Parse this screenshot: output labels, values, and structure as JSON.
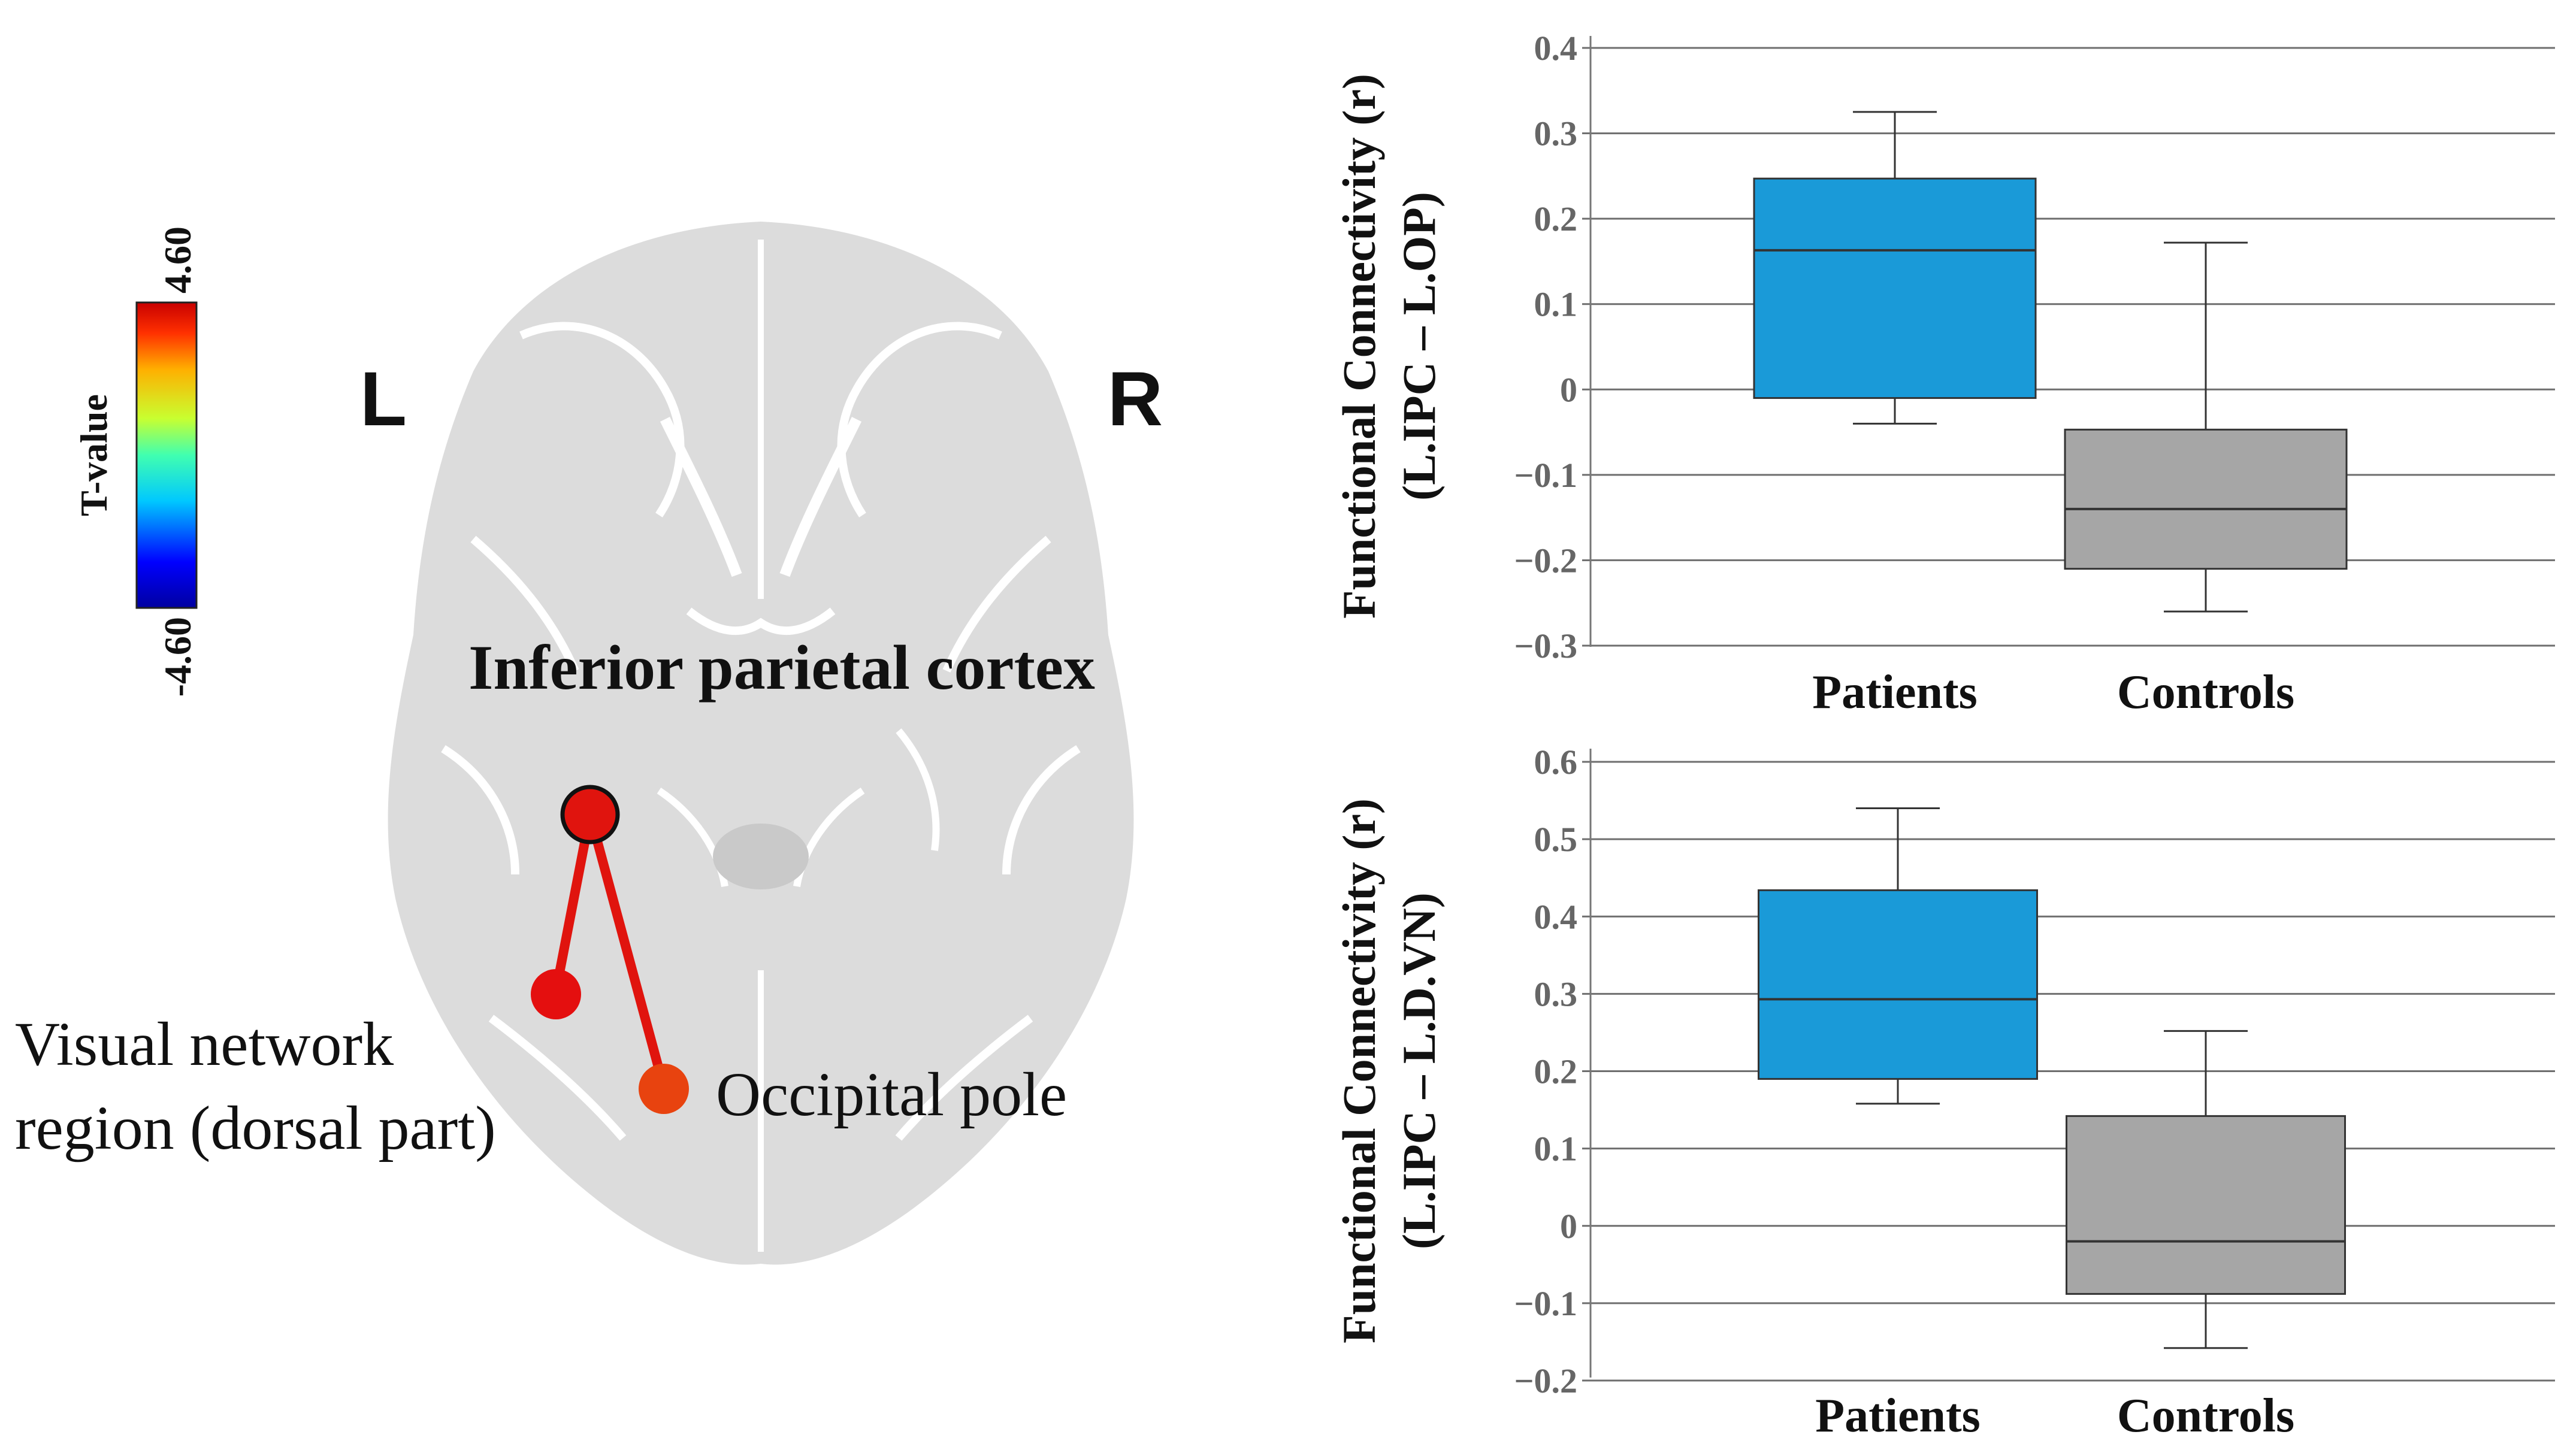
{
  "colors": {
    "patients": "#1a9ad8",
    "controls": "#a6a6a6",
    "connection": "#e0140e",
    "brain": "#dcdcdc"
  },
  "brain_panel": {
    "left_label": "L",
    "right_label": "R",
    "seed_label": "Inferior parietal cortex",
    "target1_label_line1": "Visual network",
    "target1_label_line2": "region (dorsal part)",
    "target2_label": "Occipital pole",
    "colorbar": {
      "title": "T-value",
      "max_label": "4.60",
      "min_label": "-4.60"
    }
  },
  "chart_data": [
    {
      "type": "box",
      "ylabel_line1": "Functional Connectivity (r)",
      "ylabel_line2": "(L.IPC – L.OP)",
      "ylim": [
        -0.3,
        0.4
      ],
      "yticks": [
        0.4,
        0.3,
        0.2,
        0.1,
        0,
        -0.1,
        -0.2,
        -0.3
      ],
      "ytick_labels": [
        "0.4",
        "0.3",
        "0.2",
        "0.1",
        "0",
        "−0.1",
        "−0.2",
        "−0.3"
      ],
      "grid": true,
      "categories": [
        "Patients",
        "Controls"
      ],
      "series": [
        {
          "name": "Patients",
          "min": -0.04,
          "q1": -0.01,
          "median": 0.163,
          "q3": 0.247,
          "max": 0.325
        },
        {
          "name": "Controls",
          "min": -0.26,
          "q1": -0.21,
          "median": -0.14,
          "q3": -0.047,
          "max": 0.172
        }
      ]
    },
    {
      "type": "box",
      "ylabel_line1": "Functional Connectivity (r)",
      "ylabel_line2": "(L.IPC – L.D.VN)",
      "ylim": [
        -0.2,
        0.6
      ],
      "yticks": [
        0.6,
        0.5,
        0.4,
        0.3,
        0.2,
        0.1,
        0,
        -0.1,
        -0.2
      ],
      "ytick_labels": [
        "0.6",
        "0.5",
        "0.4",
        "0.3",
        "0.2",
        "0.1",
        "0",
        "−0.1",
        "−0.2"
      ],
      "grid": true,
      "categories": [
        "Patients",
        "Controls"
      ],
      "series": [
        {
          "name": "Patients",
          "min": 0.158,
          "q1": 0.19,
          "median": 0.293,
          "q3": 0.434,
          "max": 0.54
        },
        {
          "name": "Controls",
          "min": -0.158,
          "q1": -0.088,
          "median": -0.02,
          "q3": 0.142,
          "max": 0.252
        }
      ]
    }
  ]
}
